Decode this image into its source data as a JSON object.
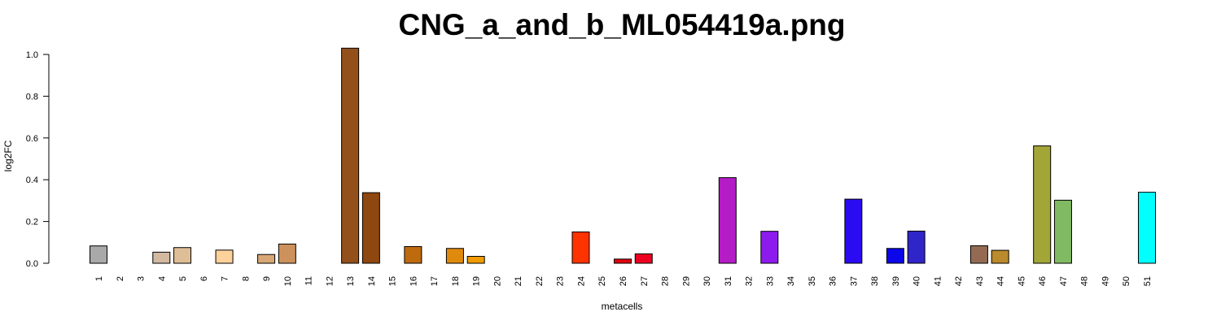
{
  "chart_data": {
    "type": "bar",
    "title": "CNG_a_and_b_ML054419a.png",
    "xlabel": "metacells",
    "ylabel": "log2FC",
    "ylim": [
      0,
      1.0
    ],
    "yticks": [
      "0.0",
      "0.2",
      "0.4",
      "0.6",
      "0.8",
      "1.0"
    ],
    "grid": false,
    "categories": [
      "1",
      "2",
      "3",
      "4",
      "5",
      "6",
      "7",
      "8",
      "9",
      "10",
      "11",
      "12",
      "13",
      "14",
      "15",
      "16",
      "17",
      "18",
      "19",
      "20",
      "21",
      "22",
      "23",
      "24",
      "25",
      "26",
      "27",
      "28",
      "29",
      "30",
      "31",
      "32",
      "33",
      "34",
      "35",
      "36",
      "37",
      "38",
      "39",
      "40",
      "41",
      "42",
      "43",
      "44",
      "45",
      "46",
      "47",
      "48",
      "49",
      "50",
      "51"
    ],
    "values": [
      0.083,
      0,
      0,
      0.053,
      0.075,
      0,
      0.063,
      0,
      0.042,
      0.092,
      0,
      0,
      1.03,
      0.338,
      0,
      0.08,
      0,
      0.071,
      0.033,
      0,
      0,
      0,
      0,
      0.15,
      0,
      0.02,
      0.045,
      0,
      0,
      0,
      0.41,
      0,
      0.153,
      0,
      0,
      0,
      0.307,
      0,
      0.071,
      0.154,
      0,
      0,
      0.084,
      0.062,
      0,
      0.562,
      0.302,
      0,
      0,
      0,
      0.34
    ],
    "colors": [
      "#A9A9A9",
      "#C0C0C0",
      "#C0C0C0",
      "#D2B9A0",
      "#DEBE96",
      "#C0C0C0",
      "#FDD19A",
      "#C0C0C0",
      "#D8A775",
      "#CD925C",
      "#C0C0C0",
      "#C0C0C0",
      "#93501B",
      "#8E470F",
      "#C0C0C0",
      "#BE6B10",
      "#C0C0C0",
      "#E08A0D",
      "#F09B00",
      "#C0C0C0",
      "#C0C0C0",
      "#C0C0C0",
      "#C0C0C0",
      "#FF3300",
      "#C0C0C0",
      "#E3000E",
      "#ED0020",
      "#C0C0C0",
      "#C0C0C0",
      "#C0C0C0",
      "#B41CC6",
      "#C0C0C0",
      "#8E1BEE",
      "#C0C0C0",
      "#C0C0C0",
      "#C0C0C0",
      "#2A0BF2",
      "#C0C0C0",
      "#0C06EA",
      "#3025C9",
      "#C0C0C0",
      "#C0C0C0",
      "#946B52",
      "#BA8A2C",
      "#C0C0C0",
      "#A2A636",
      "#80BA62",
      "#C0C0C0",
      "#C0C0C0",
      "#C0C0C0",
      "#00FFFF"
    ]
  }
}
